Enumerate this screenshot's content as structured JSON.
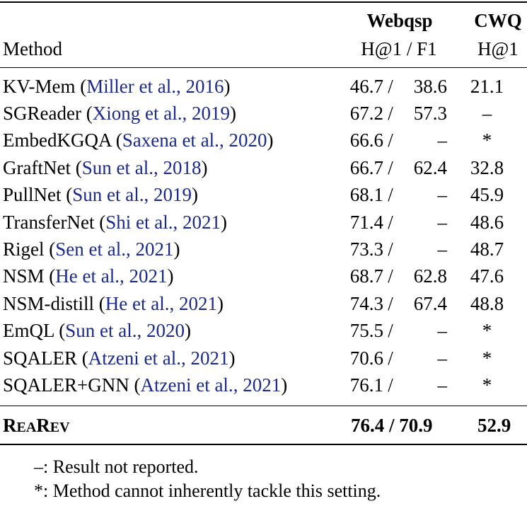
{
  "header": {
    "method_label": "Method",
    "webqsp_label": "Webqsp",
    "webqsp_metric": "H@1 / F1",
    "cwq_label": "CWQ",
    "cwq_metric": "H@1"
  },
  "rows": [
    {
      "name": "KV-Mem",
      "cite_authors": "Miller et al.",
      "cite_year": "2016",
      "h1": "46.7",
      "sep": "/",
      "f1": "38.6",
      "cwq": "21.1"
    },
    {
      "name": "SGReader",
      "cite_authors": "Xiong et al.",
      "cite_year": "2019",
      "h1": "67.2",
      "sep": "/",
      "f1": "57.3",
      "cwq": "–"
    },
    {
      "name": "EmbedKGQA",
      "cite_authors": "Saxena et al.",
      "cite_year": "2020",
      "h1": "66.6",
      "sep": "/",
      "f1": "–",
      "cwq": "*"
    },
    {
      "name": "GraftNet",
      "cite_authors": "Sun et al.",
      "cite_year": "2018",
      "h1": "66.7",
      "sep": "/",
      "f1": "62.4",
      "cwq": "32.8"
    },
    {
      "name": "PullNet",
      "cite_authors": "Sun et al.",
      "cite_year": "2019",
      "h1": "68.1",
      "sep": "/",
      "f1": "–",
      "cwq": "45.9"
    },
    {
      "name": "TransferNet",
      "cite_authors": "Shi et al.",
      "cite_year": "2021",
      "h1": "71.4",
      "sep": "/",
      "f1": "–",
      "cwq": "48.6"
    },
    {
      "name": "Rigel",
      "cite_authors": "Sen et al.",
      "cite_year": "2021",
      "h1": "73.3",
      "sep": "/",
      "f1": "–",
      "cwq": "48.7"
    },
    {
      "name": "NSM",
      "cite_authors": "He et al.",
      "cite_year": "2021",
      "h1": "68.7",
      "sep": "/",
      "f1": "62.8",
      "cwq": "47.6"
    },
    {
      "name": "NSM-distill",
      "cite_authors": "He et al.",
      "cite_year": "2021",
      "h1": "74.3",
      "sep": "/",
      "f1": "67.4",
      "cwq": "48.8"
    },
    {
      "name": "EmQL",
      "cite_authors": "Sun et al.",
      "cite_year": "2020",
      "h1": "75.5",
      "sep": "/",
      "f1": "–",
      "cwq": "*"
    },
    {
      "name": "SQALER",
      "cite_authors": "Atzeni et al.",
      "cite_year": "2021",
      "h1": "70.6",
      "sep": "/",
      "f1": "–",
      "cwq": "*"
    },
    {
      "name": "SQALER+GNN",
      "cite_authors": "Atzeni et al.",
      "cite_year": "2021",
      "h1": "76.1",
      "sep": "/",
      "f1": "–",
      "cwq": "*"
    }
  ],
  "ours": {
    "name": "ReaRev",
    "webqsp": "76.4 / 70.9",
    "cwq": "52.9"
  },
  "footnotes": [
    "–: Result not reported.",
    "*: Method cannot inherently tackle this setting."
  ],
  "colors": {
    "citation": "#1b2a8a",
    "text": "#000000"
  }
}
